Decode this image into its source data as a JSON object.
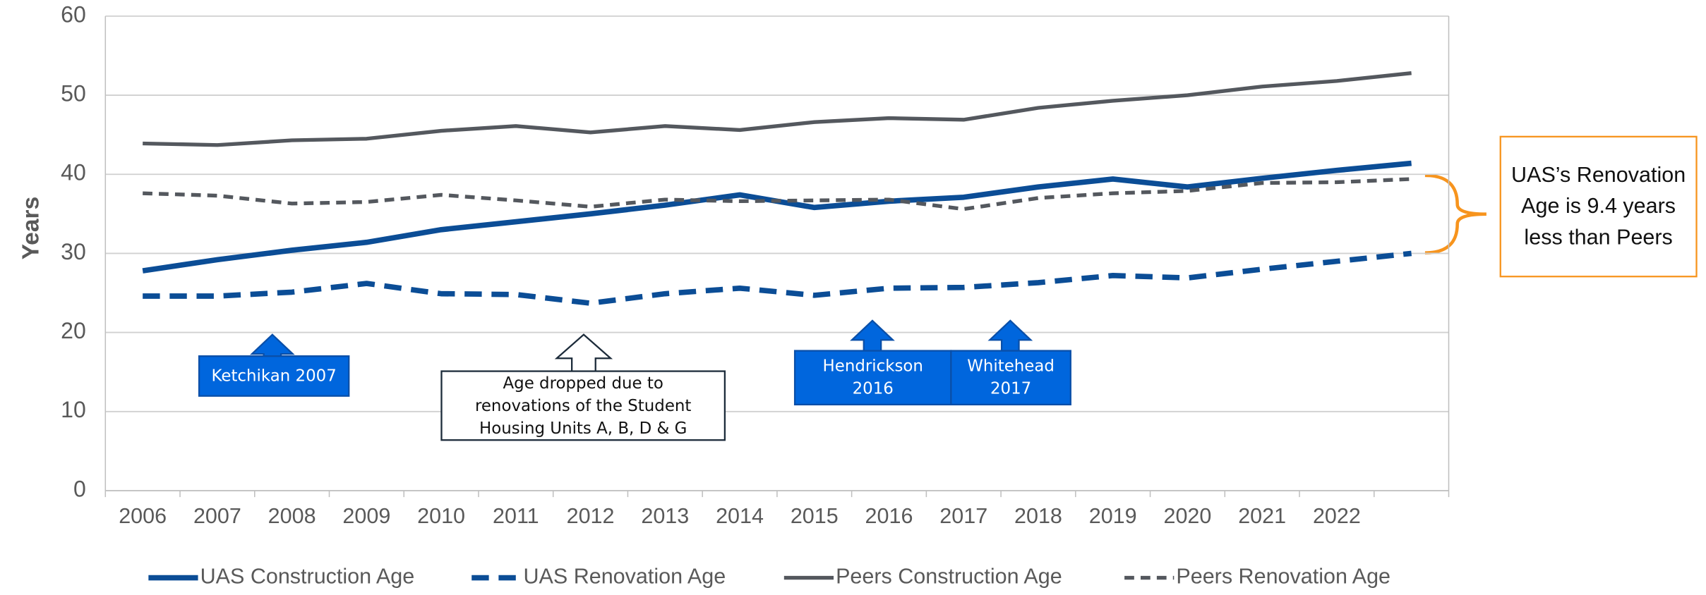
{
  "chart_data": {
    "type": "line",
    "y_label": "Years",
    "categories": [
      "2006",
      "2007",
      "2008",
      "2009",
      "2010",
      "2011",
      "2012",
      "2013",
      "2014",
      "2015",
      "2016",
      "2017",
      "2018",
      "2019",
      "2020",
      "2021",
      "2022",
      null
    ],
    "ylim": [
      0,
      60
    ],
    "yticks": [
      0,
      10,
      20,
      30,
      40,
      50,
      60
    ],
    "grid": true,
    "legend": "bottom",
    "series": [
      {
        "name": "UAS Construction Age",
        "color": "#0b4d96",
        "style": "solid",
        "values": [
          27.8,
          29.2,
          30.4,
          31.4,
          33.0,
          34.0,
          35.0,
          36.1,
          37.4,
          35.8,
          36.6,
          37.1,
          38.4,
          39.4,
          38.4,
          39.5,
          40.5,
          41.4
        ]
      },
      {
        "name": "UAS Renovation Age",
        "color": "#0b4d96",
        "style": "dashed",
        "values": [
          24.6,
          24.6,
          25.1,
          26.2,
          24.9,
          24.8,
          23.7,
          24.9,
          25.6,
          24.7,
          25.6,
          25.7,
          26.3,
          27.2,
          26.9,
          28.0,
          29.0,
          30.0
        ]
      },
      {
        "name": "Peers Construction Age",
        "color": "#54585e",
        "style": "solid",
        "values": [
          43.9,
          43.7,
          44.3,
          44.5,
          45.5,
          46.1,
          45.3,
          46.1,
          45.6,
          46.6,
          47.1,
          46.9,
          48.4,
          49.3,
          50.0,
          51.1,
          51.8,
          52.8
        ]
      },
      {
        "name": "Peers Renovation Age",
        "color": "#54585e",
        "style": "dashed",
        "values": [
          37.6,
          37.3,
          36.3,
          36.5,
          37.4,
          36.7,
          35.9,
          36.8,
          36.6,
          36.7,
          36.8,
          35.6,
          37.0,
          37.6,
          37.9,
          38.9,
          39.0,
          39.4
        ]
      }
    ],
    "annotations": [
      {
        "text": "Ketchikan 2007"
      },
      {
        "text": "Age dropped due to renovations of the Student Housing Units A, B, D & G"
      },
      {
        "text": "Hendrickson 2016"
      },
      {
        "text": "Whitehead 2017"
      },
      {
        "text": "UAS’s Renovation Age is 9.4 years less than Peers"
      }
    ]
  }
}
